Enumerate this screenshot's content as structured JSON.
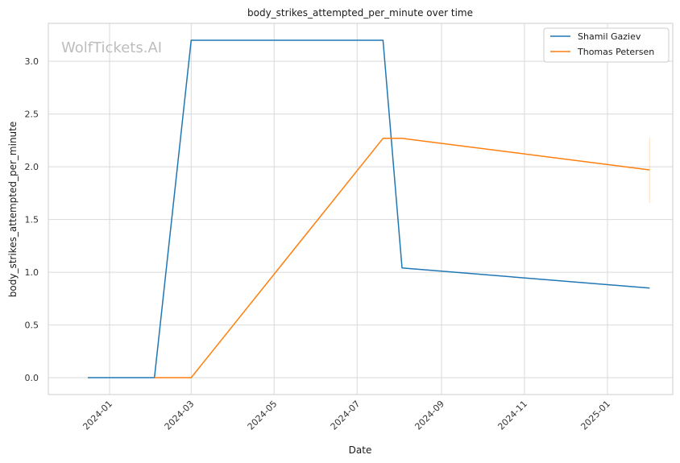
{
  "chart_data": {
    "type": "line",
    "title": "body_strikes_attempted_per_minute over time",
    "xlabel": "Date",
    "ylabel": "body_strikes_attempted_per_minute",
    "watermark": "WolfTickets.AI",
    "x_ticks": [
      "2024-01-01",
      "2024-03-01",
      "2024-05-01",
      "2024-07-01",
      "2024-09-01",
      "2024-11-01",
      "2025-01-01"
    ],
    "x_tick_labels": [
      "2024-01",
      "2024-03",
      "2024-05",
      "2024-07",
      "2024-09",
      "2024-11",
      "2025-01"
    ],
    "y_ticks": [
      0.0,
      0.5,
      1.0,
      1.5,
      2.0,
      2.5,
      3.0
    ],
    "y_tick_labels": [
      "0.0",
      "0.5",
      "1.0",
      "1.5",
      "2.0",
      "2.5",
      "3.0"
    ],
    "xlim": [
      "2023-11-17",
      "2025-02-18"
    ],
    "ylim": [
      -0.16,
      3.36
    ],
    "grid": true,
    "legend_position": "top-right",
    "series": [
      {
        "name": "Shamil Gaziev",
        "color": "#1f77b4",
        "x": [
          "2023-12-16",
          "2024-02-03",
          "2024-03-01",
          "2024-07-20",
          "2024-08-03",
          "2025-02-01"
        ],
        "y": [
          0.0,
          0.0,
          3.2,
          3.2,
          1.04,
          0.85
        ]
      },
      {
        "name": "Thomas Petersen",
        "color": "#ff7f0e",
        "x": [
          "2024-02-03",
          "2024-03-01",
          "2024-07-20",
          "2024-08-03",
          "2025-02-01"
        ],
        "y": [
          0.0,
          0.0,
          2.27,
          2.27,
          1.97
        ]
      }
    ],
    "error_bar": {
      "series": "Thomas Petersen",
      "x": "2025-02-01",
      "low": 1.66,
      "high": 2.28
    }
  }
}
